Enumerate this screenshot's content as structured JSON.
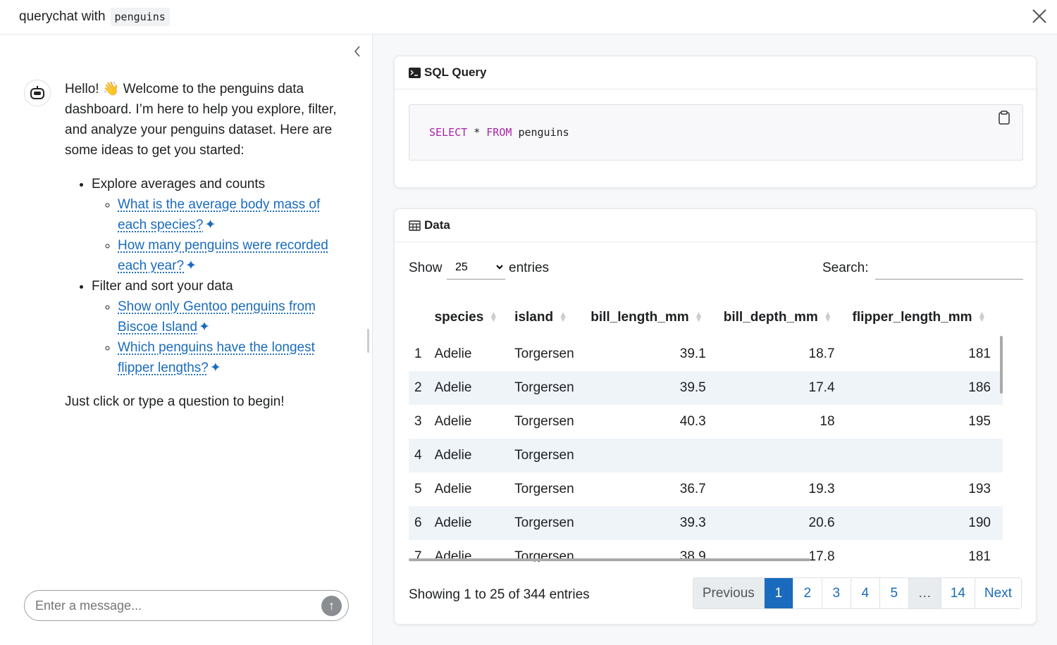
{
  "header": {
    "title": "querychat with",
    "dataset": "penguins"
  },
  "chat": {
    "greeting": "Hello! 👋 Welcome to the penguins data dashboard. I’m here to help you explore, filter, and analyze your penguins dataset. Here are some ideas to get you started:",
    "groups": [
      {
        "label": "Explore averages and counts",
        "suggestions": [
          "What is the average body mass of each species?",
          "How many penguins were recorded each year?"
        ]
      },
      {
        "label": "Filter and sort your data",
        "suggestions": [
          "Show only Gentoo penguins from Biscoe Island",
          "Which penguins have the longest flipper lengths?"
        ]
      }
    ],
    "closing": "Just click or type a question to begin!",
    "input_placeholder": "Enter a message..."
  },
  "sql_card": {
    "title": "SQL Query",
    "query": {
      "select": "SELECT",
      "columns": "*",
      "from": "FROM",
      "table": "penguins"
    }
  },
  "data_card": {
    "title": "Data",
    "show_label": "Show",
    "page_length": "25",
    "entries_label": "entries",
    "search_label": "Search:",
    "table": {
      "columns": [
        null,
        "species",
        "island",
        "bill_length_mm",
        "bill_depth_mm",
        "flipper_length_mm"
      ],
      "rows": [
        [
          1,
          "Adelie",
          "Torgersen",
          39.1,
          18.7,
          181
        ],
        [
          2,
          "Adelie",
          "Torgersen",
          39.5,
          17.4,
          186
        ],
        [
          3,
          "Adelie",
          "Torgersen",
          40.3,
          18,
          195
        ],
        [
          4,
          "Adelie",
          "Torgersen",
          null,
          null,
          null
        ],
        [
          5,
          "Adelie",
          "Torgersen",
          36.7,
          19.3,
          193
        ],
        [
          6,
          "Adelie",
          "Torgersen",
          39.3,
          20.6,
          190
        ],
        [
          7,
          "Adelie",
          "Torgersen",
          38.9,
          17.8,
          181
        ]
      ]
    },
    "info": "Showing 1 to 25 of 344 entries",
    "pagination": [
      "Previous",
      "1",
      "2",
      "3",
      "4",
      "5",
      "…",
      "14",
      "Next"
    ]
  }
}
